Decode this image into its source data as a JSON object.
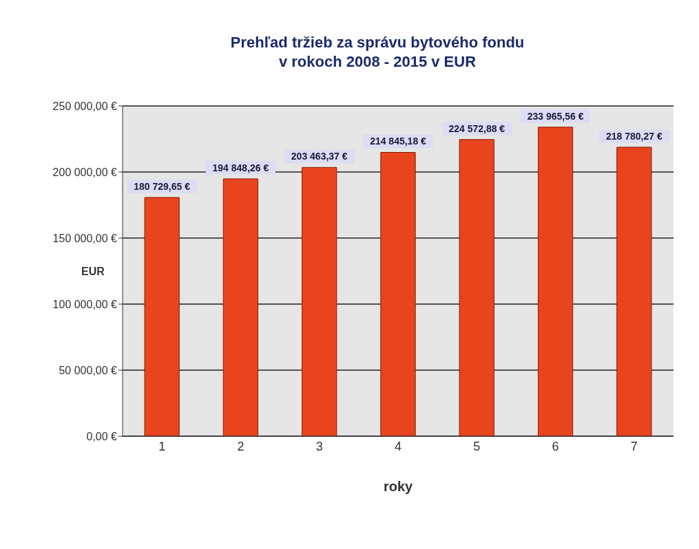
{
  "chart_data": {
    "type": "bar",
    "title": "Prehľad tržieb za správu bytového fondu\nv rokoch 2008 - 2015 v EUR",
    "xlabel": "roky",
    "ylabel": "EUR",
    "categories": [
      "1",
      "2",
      "3",
      "4",
      "5",
      "6",
      "7"
    ],
    "values": [
      180729.65,
      194848.26,
      203463.37,
      214845.18,
      224572.88,
      233965.56,
      218780.27
    ],
    "value_labels": [
      "180 729,65 €",
      "194 848,26 €",
      "203 463,37 €",
      "214 845,18 €",
      "224 572,88 €",
      "233 965,56 €",
      "218 780,27 €"
    ],
    "color": "#e8441e",
    "ylim": [
      0,
      250000
    ],
    "yticks": [
      {
        "value": 0,
        "label": "0,00 €"
      },
      {
        "value": 50000,
        "label": "50 000,00 €"
      },
      {
        "value": 100000,
        "label": "100 000,00 €"
      },
      {
        "value": 150000,
        "label": "150 000,00 €"
      },
      {
        "value": 200000,
        "label": "200 000,00 €"
      },
      {
        "value": 250000,
        "label": "250 000,00 €"
      }
    ],
    "grid": "y",
    "legend": false
  }
}
